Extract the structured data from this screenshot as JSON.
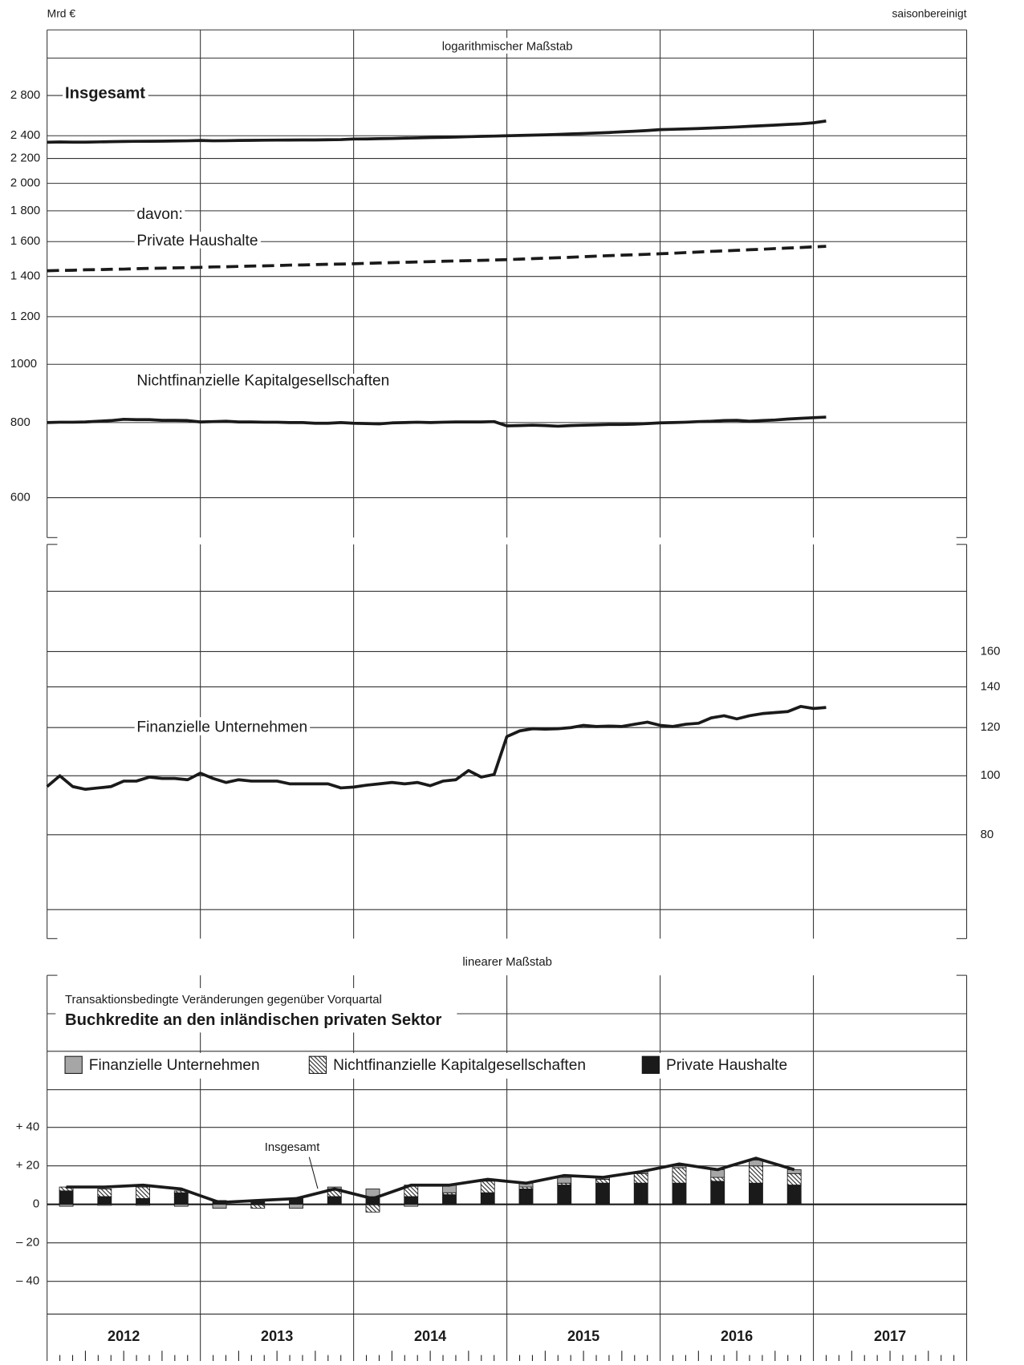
{
  "header": {
    "unit": "Mrd €",
    "note": "saisonbereinigt"
  },
  "chart_data": [
    {
      "type": "line",
      "log_scale": true,
      "scale_label": "logarithmischer Maßstab",
      "annotation": "davon:",
      "xlim": [
        2012,
        2018
      ],
      "xgrid": [
        2013,
        2014,
        2015,
        2016,
        2017
      ],
      "ylim": [
        515,
        3600
      ],
      "yticks": [
        600,
        800,
        1000,
        {
          "value": 1200,
          "label": "1 200"
        },
        {
          "value": 1400,
          "label": "1 400"
        },
        {
          "value": 1600,
          "label": "1 600"
        },
        {
          "value": 1800,
          "label": "1 800"
        },
        {
          "value": 2000,
          "label": "2 000"
        },
        {
          "value": 2200,
          "label": "2 200"
        },
        {
          "value": 2400,
          "label": "2 400"
        },
        {
          "value": 2800,
          "label": "2 800"
        }
      ],
      "x": [
        2012,
        2012.083,
        2012.167,
        2012.25,
        2012.333,
        2012.417,
        2012.5,
        2012.583,
        2012.667,
        2012.75,
        2012.833,
        2012.917,
        2013,
        2013.083,
        2013.167,
        2013.25,
        2013.333,
        2013.417,
        2013.5,
        2013.583,
        2013.667,
        2013.75,
        2013.833,
        2013.917,
        2014,
        2014.083,
        2014.167,
        2014.25,
        2014.333,
        2014.417,
        2014.5,
        2014.583,
        2014.667,
        2014.75,
        2014.833,
        2014.917,
        2015,
        2015.083,
        2015.167,
        2015.25,
        2015.333,
        2015.417,
        2015.5,
        2015.583,
        2015.667,
        2015.75,
        2015.833,
        2015.917,
        2016,
        2016.083,
        2016.167,
        2016.25,
        2016.333,
        2016.417,
        2016.5,
        2016.583,
        2016.667,
        2016.75,
        2016.833,
        2016.917,
        2017,
        2017.083
      ],
      "series": [
        {
          "name": "Insgesamt",
          "color": "#1a1a1a",
          "dashed": false,
          "values": [
            2341,
            2343,
            2342,
            2342,
            2344,
            2346,
            2348,
            2349,
            2350,
            2351,
            2352,
            2354,
            2357,
            2354,
            2355,
            2357,
            2358,
            2359,
            2360,
            2361,
            2362,
            2362,
            2363,
            2365,
            2370,
            2371,
            2373,
            2375,
            2378,
            2380,
            2383,
            2385,
            2388,
            2391,
            2394,
            2397,
            2400,
            2403,
            2405,
            2408,
            2412,
            2416,
            2420,
            2425,
            2430,
            2436,
            2442,
            2448,
            2457,
            2460,
            2463,
            2467,
            2472,
            2477,
            2482,
            2488,
            2494,
            2500,
            2506,
            2512,
            2522,
            2539
          ]
        },
        {
          "name": "Private Haushalte",
          "color": "#1a1a1a",
          "dashed": true,
          "values": [
            1431,
            1433,
            1434,
            1436,
            1437,
            1439,
            1440,
            1442,
            1444,
            1445,
            1447,
            1448,
            1450,
            1452,
            1453,
            1455,
            1457,
            1458,
            1460,
            1462,
            1463,
            1465,
            1467,
            1468,
            1470,
            1472,
            1474,
            1476,
            1478,
            1480,
            1482,
            1484,
            1486,
            1487,
            1489,
            1491,
            1493,
            1496,
            1499,
            1502,
            1504,
            1507,
            1510,
            1513,
            1516,
            1519,
            1521,
            1524,
            1527,
            1530,
            1534,
            1537,
            1541,
            1544,
            1547,
            1551,
            1554,
            1558,
            1561,
            1564,
            1568,
            1571
          ]
        },
        {
          "name": "Nichtfinanzielle Kapitalgesellschaften",
          "color": "#1a1a1a",
          "dashed": false,
          "values": [
            800,
            801,
            801,
            802,
            804,
            806,
            810,
            809,
            809,
            807,
            807,
            806,
            802,
            803,
            804,
            802,
            802,
            801,
            801,
            800,
            800,
            798,
            798,
            800,
            798,
            797,
            796,
            799,
            800,
            801,
            800,
            801,
            802,
            802,
            802,
            803,
            790,
            791,
            792,
            791,
            789,
            791,
            792,
            793,
            794,
            794,
            795,
            797,
            799,
            800,
            801,
            803,
            804,
            806,
            807,
            804,
            806,
            808,
            811,
            813,
            815,
            817
          ]
        }
      ]
    },
    {
      "type": "line",
      "log_scale": true,
      "y_axis": "right",
      "xlim": [
        2012,
        2018
      ],
      "xgrid": [
        2013,
        2014,
        2015,
        2016,
        2017
      ],
      "ylim": [
        54,
        240
      ],
      "yticks": [
        80,
        100,
        120,
        140,
        160
      ],
      "x": [
        2012,
        2012.083,
        2012.167,
        2012.25,
        2012.333,
        2012.417,
        2012.5,
        2012.583,
        2012.667,
        2012.75,
        2012.833,
        2012.917,
        2013,
        2013.083,
        2013.167,
        2013.25,
        2013.333,
        2013.417,
        2013.5,
        2013.583,
        2013.667,
        2013.75,
        2013.833,
        2013.917,
        2014,
        2014.083,
        2014.167,
        2014.25,
        2014.333,
        2014.417,
        2014.5,
        2014.583,
        2014.667,
        2014.75,
        2014.833,
        2014.917,
        2015,
        2015.083,
        2015.167,
        2015.25,
        2015.333,
        2015.417,
        2015.5,
        2015.583,
        2015.667,
        2015.75,
        2015.833,
        2015.917,
        2016,
        2016.083,
        2016.167,
        2016.25,
        2016.333,
        2016.417,
        2016.5,
        2016.583,
        2016.667,
        2016.75,
        2016.833,
        2016.917,
        2017,
        2017.083
      ],
      "series": [
        {
          "name": "Finanzielle Unternehmen",
          "color": "#1a1a1a",
          "dashed": false,
          "values": [
            96,
            100,
            96,
            95,
            95.5,
            96,
            98,
            98,
            99.5,
            99,
            99,
            98.5,
            101,
            99,
            97.5,
            98.5,
            98,
            98,
            98,
            97,
            97,
            97,
            97,
            95.5,
            95.8,
            96.5,
            97,
            97.5,
            97,
            97.5,
            96.3,
            98,
            98.5,
            102,
            99.5,
            100.5,
            116,
            118.5,
            119.5,
            119.3,
            119.5,
            120,
            121,
            120.5,
            120.7,
            120.5,
            121.5,
            122.5,
            121,
            120.5,
            121.5,
            122,
            124.5,
            125.5,
            124,
            125.5,
            126.5,
            127,
            127.5,
            130,
            129,
            129.5
          ]
        }
      ]
    },
    {
      "type": "stacked_bar",
      "scale_label": "linearer Maßstab",
      "subtitle": "Transaktionsbedingte Veränderungen gegenüber Vorquartal",
      "title": "Buchkredite an den inländischen privaten Sektor",
      "xlim": [
        2012,
        2018
      ],
      "xgrid": [
        2013,
        2014,
        2015,
        2016,
        2017
      ],
      "ylim": [
        -57,
        119
      ],
      "yticks": [
        {
          "value": -40,
          "label": "– 40"
        },
        {
          "value": -20,
          "label": "– 20"
        },
        0,
        {
          "value": 20,
          "label": "+ 20"
        },
        {
          "value": 40,
          "label": "+ 40"
        }
      ],
      "categories": [
        "2012",
        "2013",
        "2014",
        "2015",
        "2016",
        "2017"
      ],
      "x": [
        2012.125,
        2012.375,
        2012.625,
        2012.875,
        2013.125,
        2013.375,
        2013.625,
        2013.875,
        2014.125,
        2014.375,
        2014.625,
        2014.875,
        2015.125,
        2015.375,
        2015.625,
        2015.875,
        2016.125,
        2016.375,
        2016.625,
        2016.875
      ],
      "series": [
        {
          "name": "Finanzielle Unternehmen",
          "color": "#a6a6a6",
          "values": [
            -1,
            -0.5,
            -0.5,
            -1,
            -2,
            0,
            -2,
            1,
            4,
            -1,
            4,
            0,
            2,
            3,
            1,
            1,
            1,
            4,
            3,
            2
          ]
        },
        {
          "name": "Nichtfinanzielle Kapitalgesellschaften",
          "pattern": "hatch",
          "values": [
            2,
            4,
            6,
            1,
            0,
            -2,
            0,
            4,
            -4,
            6,
            1,
            6,
            1,
            1,
            2,
            5,
            8,
            2,
            9,
            6
          ]
        },
        {
          "name": "Private Haushalte",
          "color": "#1a1a1a",
          "values": [
            7,
            4,
            3,
            6,
            2,
            2,
            3,
            4,
            4,
            4,
            5,
            6,
            8,
            10,
            11,
            11,
            11,
            12,
            11,
            10
          ]
        }
      ],
      "line": {
        "name": "Insgesamt",
        "color": "#1a1a1a",
        "values": [
          9,
          9,
          10,
          8,
          1,
          2,
          3,
          8,
          3,
          10,
          10,
          13,
          11,
          15,
          14,
          17,
          21,
          18,
          24,
          18
        ]
      }
    }
  ]
}
